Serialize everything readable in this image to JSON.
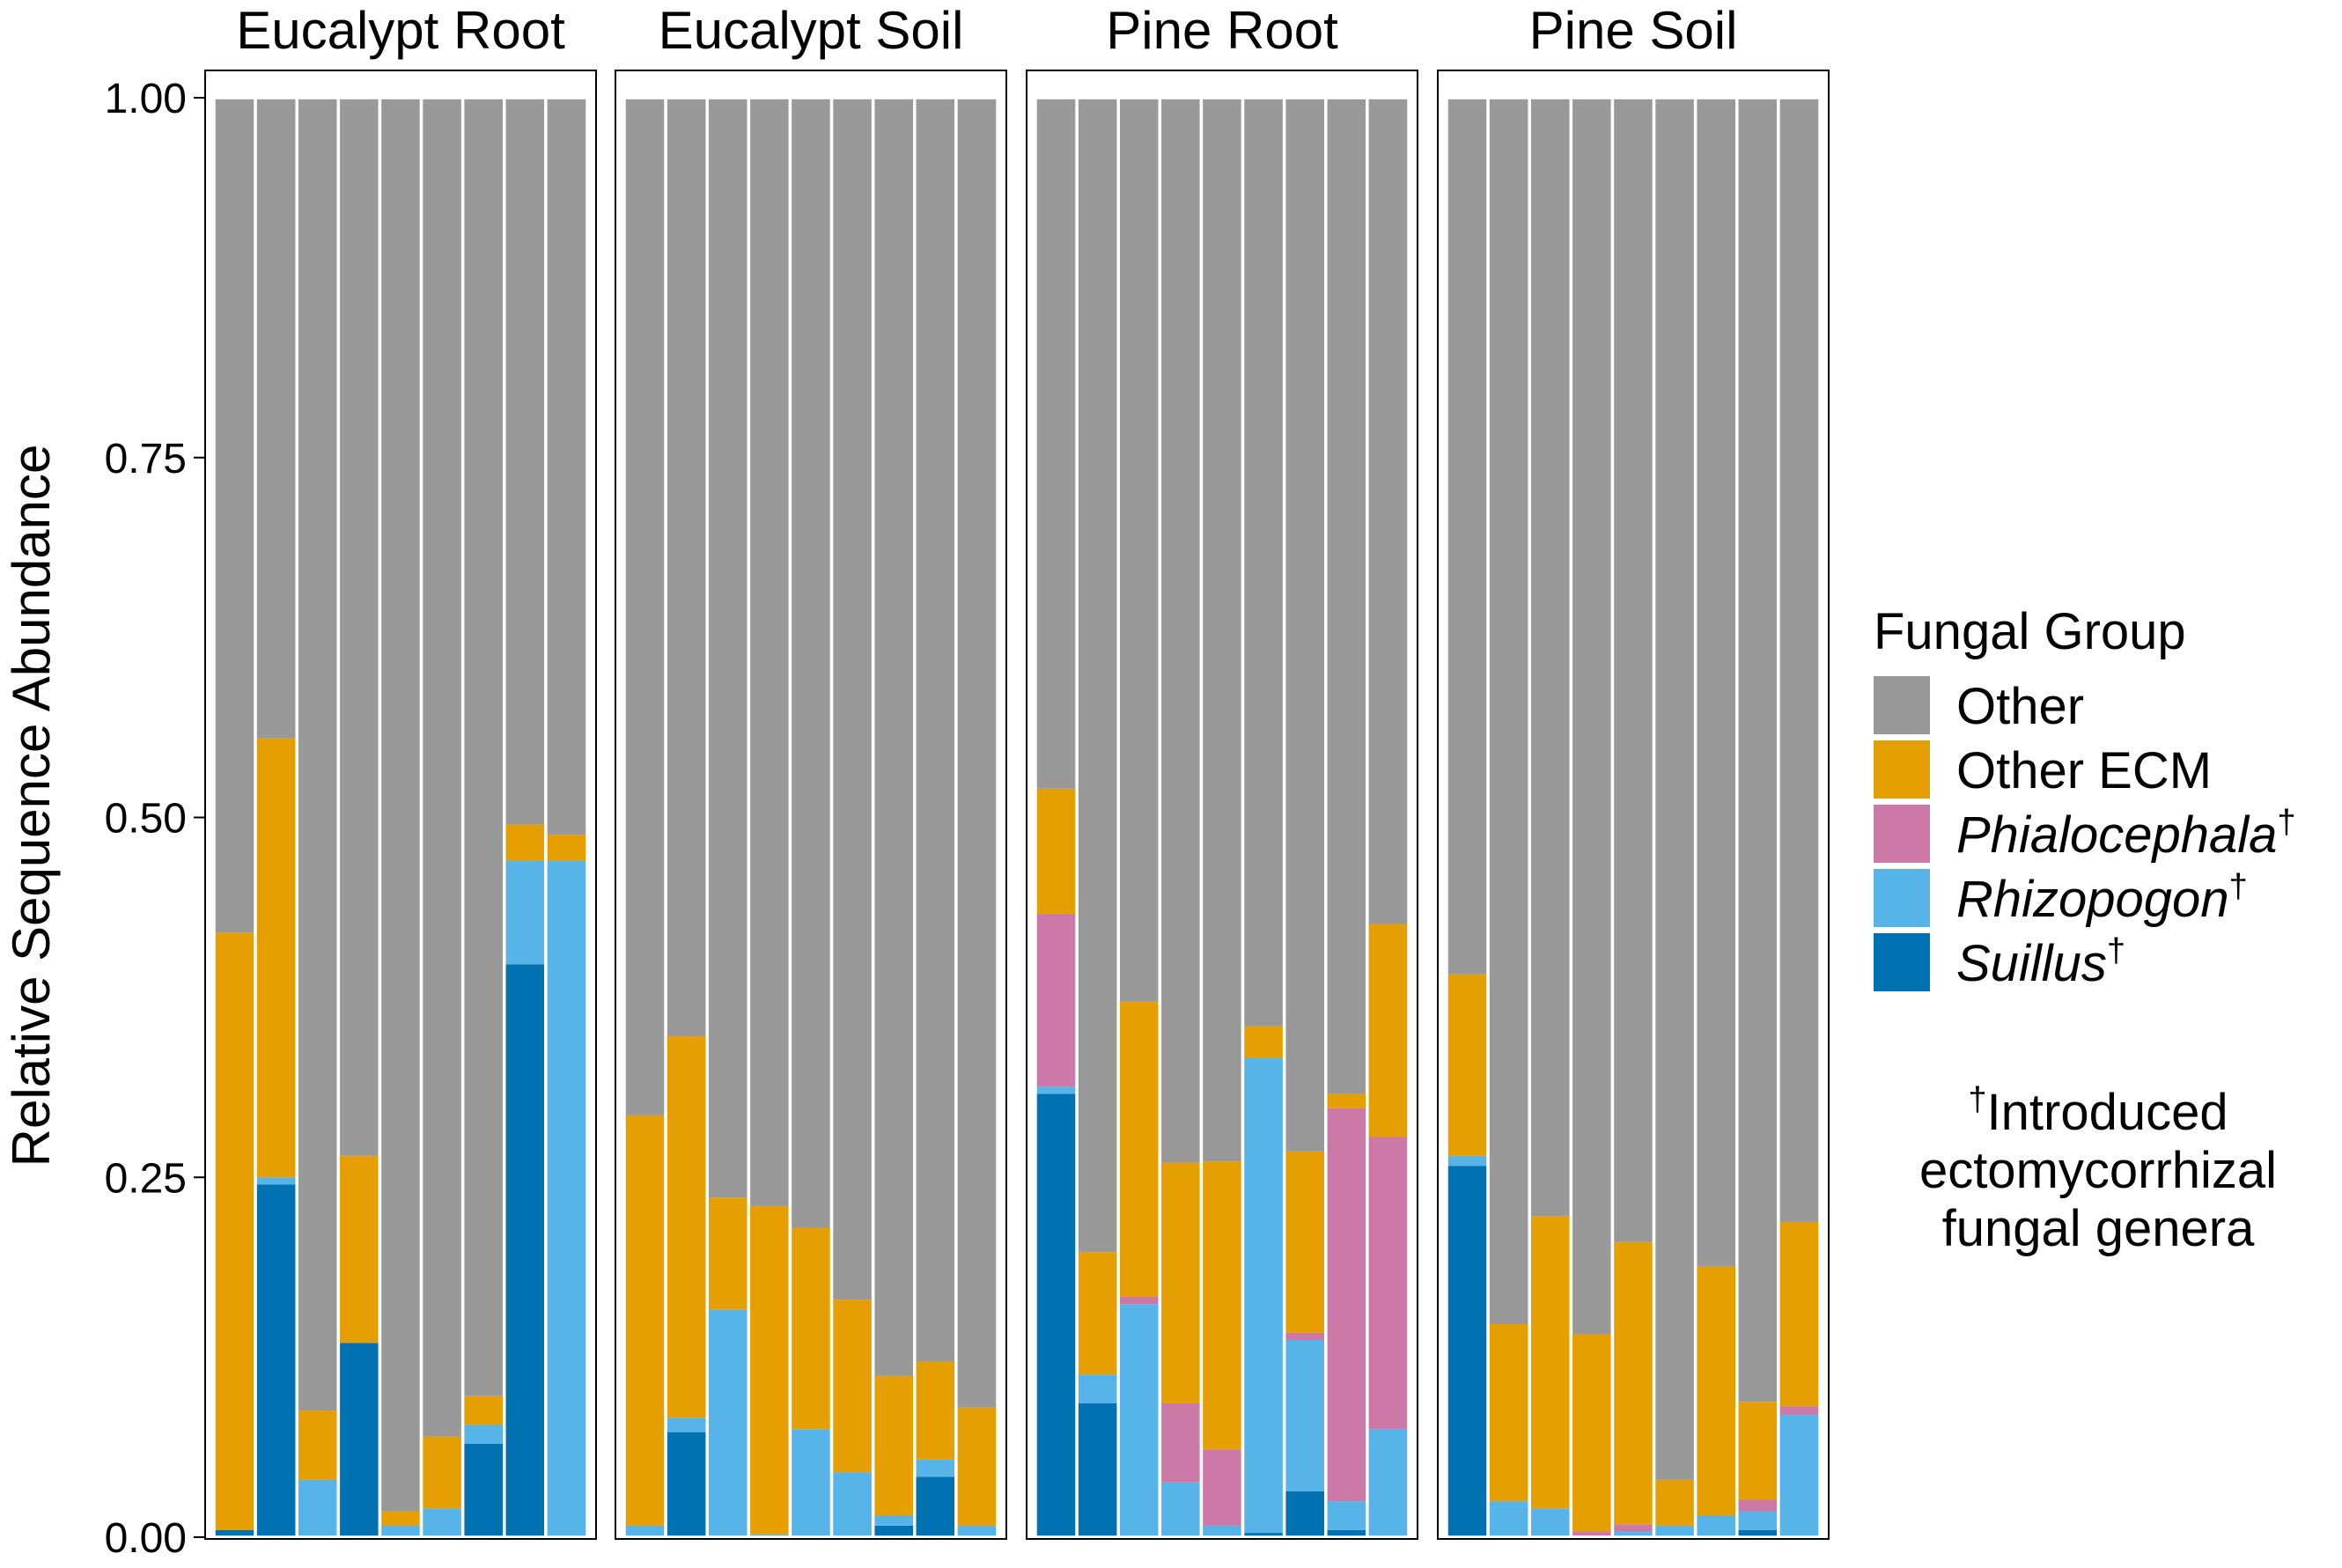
{
  "chart_data": {
    "type": "bar",
    "stacked": true,
    "ylabel": "Relative Sequence Abundance",
    "xlabel": "",
    "ylim": [
      0,
      1
    ],
    "y_ticks": [
      0,
      0.25,
      0.5,
      0.75,
      1
    ],
    "y_tick_labels": [
      "0.00",
      "0.25",
      "0.50",
      "0.75",
      "1.00"
    ],
    "grid": false,
    "legend_position": "right",
    "legend": {
      "title": "Fungal Group",
      "entries": [
        {
          "key": "other",
          "name": "Other",
          "mark": "",
          "italic": false,
          "color": "#999999"
        },
        {
          "key": "ecm",
          "name": "Other ECM",
          "mark": "",
          "italic": false,
          "color": "#E69F00"
        },
        {
          "key": "phialo",
          "name": "Phialocephala",
          "mark": "†",
          "italic": true,
          "color": "#CC79A7"
        },
        {
          "key": "rhizo",
          "name": "Rhizopogon",
          "mark": "†",
          "italic": true,
          "color": "#56B4E9"
        },
        {
          "key": "suillus",
          "name": "Suillus",
          "mark": "†",
          "italic": true,
          "color": "#0072B2"
        }
      ]
    },
    "stack_order_bottom_to_top": [
      "suillus",
      "rhizo",
      "phialo",
      "ecm",
      "other"
    ],
    "facets": [
      {
        "title": "Eucalypt Root",
        "bars": [
          {
            "suillus": 0.005,
            "rhizo": 0.0,
            "phialo": 0.0,
            "ecm": 0.415
          },
          {
            "suillus": 0.245,
            "rhizo": 0.005,
            "phialo": 0.0,
            "ecm": 0.305
          },
          {
            "suillus": 0.0,
            "rhizo": 0.04,
            "phialo": 0.0,
            "ecm": 0.048
          },
          {
            "suillus": 0.135,
            "rhizo": 0.0,
            "phialo": 0.0,
            "ecm": 0.13
          },
          {
            "suillus": 0.0,
            "rhizo": 0.008,
            "phialo": 0.0,
            "ecm": 0.01
          },
          {
            "suillus": 0.0,
            "rhizo": 0.02,
            "phialo": 0.0,
            "ecm": 0.05
          },
          {
            "suillus": 0.065,
            "rhizo": 0.013,
            "phialo": 0.0,
            "ecm": 0.02
          },
          {
            "suillus": 0.398,
            "rhizo": 0.072,
            "phialo": 0.0,
            "ecm": 0.025
          },
          {
            "suillus": 0.0,
            "rhizo": 0.47,
            "phialo": 0.0,
            "ecm": 0.018
          }
        ]
      },
      {
        "title": "Eucalypt Soil",
        "bars": [
          {
            "suillus": 0.0,
            "rhizo": 0.008,
            "phialo": 0.0,
            "ecm": 0.285
          },
          {
            "suillus": 0.073,
            "rhizo": 0.01,
            "phialo": 0.0,
            "ecm": 0.265
          },
          {
            "suillus": 0.0,
            "rhizo": 0.158,
            "phialo": 0.0,
            "ecm": 0.078
          },
          {
            "suillus": 0.0,
            "rhizo": 0.002,
            "phialo": 0.0,
            "ecm": 0.228
          },
          {
            "suillus": 0.0,
            "rhizo": 0.075,
            "phialo": 0.0,
            "ecm": 0.14
          },
          {
            "suillus": 0.0,
            "rhizo": 0.045,
            "phialo": 0.0,
            "ecm": 0.12
          },
          {
            "suillus": 0.008,
            "rhizo": 0.007,
            "phialo": 0.0,
            "ecm": 0.097
          },
          {
            "suillus": 0.042,
            "rhizo": 0.012,
            "phialo": 0.0,
            "ecm": 0.068
          },
          {
            "suillus": 0.0,
            "rhizo": 0.008,
            "phialo": 0.0,
            "ecm": 0.082
          }
        ]
      },
      {
        "title": "Pine Root",
        "bars": [
          {
            "suillus": 0.308,
            "rhizo": 0.005,
            "phialo": 0.12,
            "ecm": 0.087
          },
          {
            "suillus": 0.093,
            "rhizo": 0.02,
            "phialo": 0.0,
            "ecm": 0.085
          },
          {
            "suillus": 0.0,
            "rhizo": 0.162,
            "phialo": 0.005,
            "ecm": 0.205
          },
          {
            "suillus": 0.0,
            "rhizo": 0.038,
            "phialo": 0.055,
            "ecm": 0.167
          },
          {
            "suillus": 0.0,
            "rhizo": 0.008,
            "phialo": 0.053,
            "ecm": 0.2
          },
          {
            "suillus": 0.003,
            "rhizo": 0.33,
            "phialo": 0.0,
            "ecm": 0.022
          },
          {
            "suillus": 0.032,
            "rhizo": 0.105,
            "phialo": 0.005,
            "ecm": 0.126
          },
          {
            "suillus": 0.005,
            "rhizo": 0.02,
            "phialo": 0.273,
            "ecm": 0.01
          },
          {
            "suillus": 0.0,
            "rhizo": 0.075,
            "phialo": 0.203,
            "ecm": 0.148
          }
        ]
      },
      {
        "title": "Pine Soil",
        "bars": [
          {
            "suillus": 0.258,
            "rhizo": 0.007,
            "phialo": 0.0,
            "ecm": 0.126
          },
          {
            "suillus": 0.0,
            "rhizo": 0.025,
            "phialo": 0.0,
            "ecm": 0.123
          },
          {
            "suillus": 0.0,
            "rhizo": 0.02,
            "phialo": 0.0,
            "ecm": 0.203
          },
          {
            "suillus": 0.0,
            "rhizo": 0.0,
            "phialo": 0.004,
            "ecm": 0.137
          },
          {
            "suillus": 0.0,
            "rhizo": 0.004,
            "phialo": 0.005,
            "ecm": 0.196
          },
          {
            "suillus": 0.0,
            "rhizo": 0.008,
            "phialo": 0.0,
            "ecm": 0.032
          },
          {
            "suillus": 0.0,
            "rhizo": 0.015,
            "phialo": 0.0,
            "ecm": 0.173
          },
          {
            "suillus": 0.005,
            "rhizo": 0.013,
            "phialo": 0.008,
            "ecm": 0.068
          },
          {
            "suillus": 0.0,
            "rhizo": 0.085,
            "phialo": 0.006,
            "ecm": 0.128
          }
        ]
      }
    ],
    "footnote": {
      "mark": "†",
      "lines": [
        "Introduced",
        "ectomycorrhizal",
        "fungal genera"
      ]
    }
  }
}
